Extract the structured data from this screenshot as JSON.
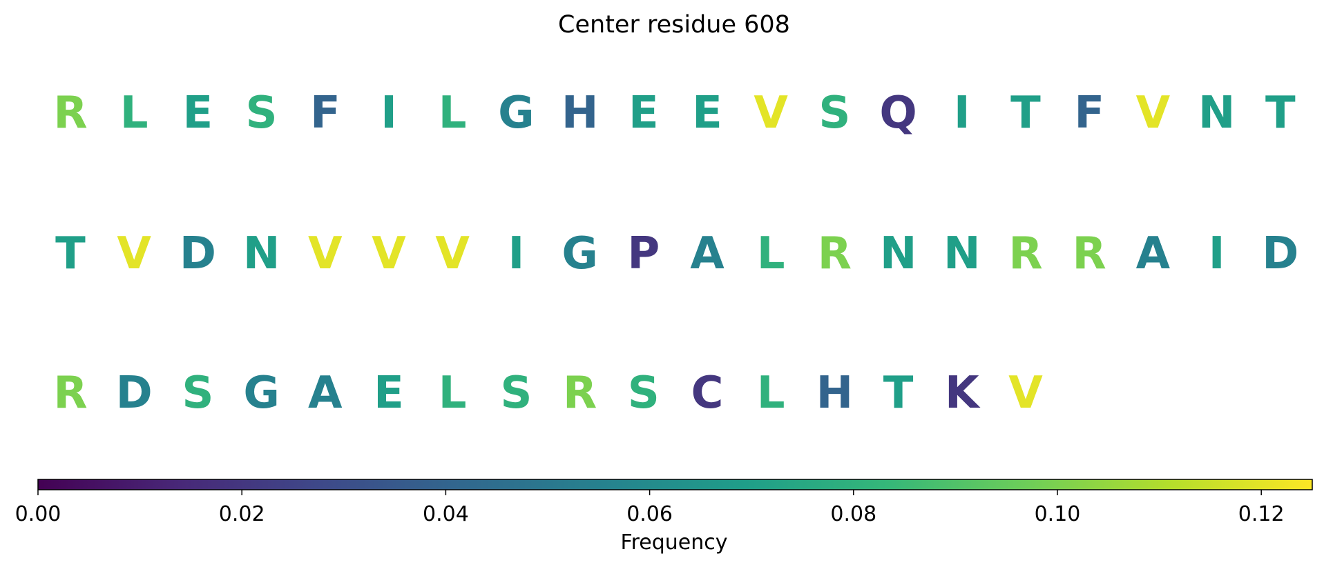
{
  "chart_data": {
    "type": "sequence-heatmap",
    "title": "Center residue 608",
    "rows": [
      {
        "residues": [
          "R",
          "L",
          "E",
          "S",
          "F",
          "I",
          "L",
          "G",
          "H",
          "E",
          "E",
          "V",
          "S",
          "Q",
          "I",
          "T",
          "F",
          "V",
          "N",
          "T"
        ],
        "frequencies": [
          0.1,
          0.08,
          0.07,
          0.08,
          0.04,
          0.07,
          0.08,
          0.055,
          0.04,
          0.07,
          0.07,
          0.12,
          0.08,
          0.02,
          0.07,
          0.07,
          0.04,
          0.12,
          0.07,
          0.07
        ]
      },
      {
        "residues": [
          "T",
          "V",
          "D",
          "N",
          "V",
          "V",
          "V",
          "I",
          "G",
          "P",
          "A",
          "L",
          "R",
          "N",
          "N",
          "R",
          "R",
          "A",
          "I",
          "D"
        ],
        "frequencies": [
          0.07,
          0.12,
          0.055,
          0.07,
          0.12,
          0.12,
          0.12,
          0.07,
          0.055,
          0.02,
          0.055,
          0.08,
          0.1,
          0.07,
          0.07,
          0.1,
          0.1,
          0.055,
          0.07,
          0.055
        ]
      },
      {
        "residues": [
          "R",
          "D",
          "S",
          "G",
          "A",
          "E",
          "L",
          "S",
          "R",
          "S",
          "C",
          "L",
          "H",
          "T",
          "K",
          "V"
        ],
        "frequencies": [
          0.1,
          0.055,
          0.08,
          0.055,
          0.055,
          0.07,
          0.08,
          0.08,
          0.1,
          0.08,
          0.02,
          0.08,
          0.04,
          0.07,
          0.02,
          0.12
        ]
      }
    ],
    "colorbar": {
      "label": "Frequency",
      "colormap": "viridis",
      "range": [
        0,
        0.125
      ],
      "ticks": [
        0.0,
        0.02,
        0.04,
        0.06,
        0.08,
        0.1,
        0.12
      ],
      "tick_labels": [
        "0.00",
        "0.02",
        "0.04",
        "0.06",
        "0.08",
        "0.10",
        "0.12"
      ]
    },
    "colormap_stops": [
      "#440154",
      "#482878",
      "#3e4989",
      "#31688e",
      "#26828e",
      "#1f9e89",
      "#35b779",
      "#6ece58",
      "#b5de2b",
      "#fde725"
    ]
  }
}
